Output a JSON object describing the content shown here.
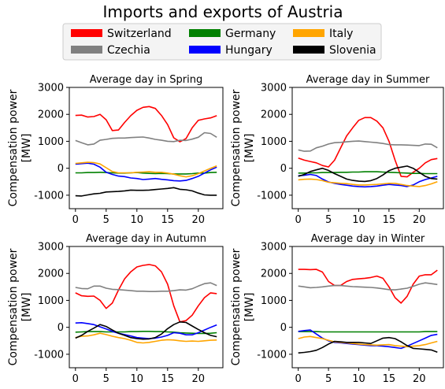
{
  "figure_title": "Imports and exports of Austria",
  "legend": [
    {
      "name": "Switzerland",
      "color": "#ff0000"
    },
    {
      "name": "Germany",
      "color": "#008000"
    },
    {
      "name": "Italy",
      "color": "#ffa500"
    },
    {
      "name": "Czechia",
      "color": "#808080"
    },
    {
      "name": "Hungary",
      "color": "#0000ff"
    },
    {
      "name": "Slovenia",
      "color": "#000000"
    }
  ],
  "chart_data": [
    {
      "type": "line",
      "title": "Average day in Spring",
      "ylabel": "Compensation power\n[MW]",
      "xlim": [
        -1,
        24
      ],
      "ylim": [
        -1500,
        3000
      ],
      "xticks": [
        0,
        5,
        10,
        15,
        20
      ],
      "yticks": [
        -1000,
        0,
        1000,
        2000,
        3000
      ],
      "x": [
        0,
        1,
        2,
        3,
        4,
        5,
        6,
        7,
        8,
        9,
        10,
        11,
        12,
        13,
        14,
        15,
        16,
        17,
        18,
        19,
        20,
        21,
        22,
        23
      ],
      "series": [
        {
          "name": "Switzerland",
          "color": "#ff0000",
          "values": [
            1960,
            1970,
            1900,
            1920,
            2000,
            1800,
            1400,
            1420,
            1700,
            1950,
            2150,
            2260,
            2290,
            2220,
            1960,
            1620,
            1130,
            980,
            1100,
            1500,
            1780,
            1830,
            1870,
            1950
          ]
        },
        {
          "name": "Czechia",
          "color": "#808080",
          "values": [
            1030,
            950,
            870,
            900,
            1040,
            1070,
            1110,
            1120,
            1120,
            1140,
            1150,
            1160,
            1120,
            1070,
            1040,
            1000,
            990,
            1040,
            1030,
            1080,
            1150,
            1320,
            1290,
            1150
          ]
        },
        {
          "name": "Germany",
          "color": "#008000",
          "values": [
            -170,
            -170,
            -160,
            -160,
            -150,
            -160,
            -170,
            -180,
            -180,
            -170,
            -160,
            -180,
            -190,
            -200,
            -190,
            -200,
            -210,
            -210,
            -210,
            -200,
            -180,
            -180,
            -160,
            -150
          ]
        },
        {
          "name": "Hungary",
          "color": "#0000ff",
          "values": [
            150,
            170,
            190,
            150,
            40,
            -150,
            -230,
            -290,
            -310,
            -360,
            -380,
            -420,
            -400,
            -380,
            -410,
            -430,
            -460,
            -470,
            -450,
            -380,
            -300,
            -180,
            -60,
            40
          ]
        },
        {
          "name": "Italy",
          "color": "#ffa500",
          "values": [
            180,
            200,
            220,
            210,
            160,
            20,
            -120,
            -170,
            -170,
            -170,
            -150,
            -140,
            -130,
            -150,
            -150,
            -180,
            -220,
            -280,
            -320,
            -280,
            -200,
            -100,
            0,
            90
          ]
        },
        {
          "name": "Slovenia",
          "color": "#000000",
          "values": [
            -1020,
            -1030,
            -990,
            -950,
            -930,
            -880,
            -870,
            -860,
            -840,
            -810,
            -820,
            -820,
            -810,
            -790,
            -770,
            -750,
            -720,
            -780,
            -800,
            -840,
            -920,
            -990,
            -1000,
            -1000
          ]
        }
      ]
    },
    {
      "type": "line",
      "title": "Average day in Summer",
      "ylabel": "Compensation power\n[MW]",
      "xlim": [
        -1,
        24
      ],
      "ylim": [
        -1500,
        3000
      ],
      "xticks": [
        0,
        5,
        10,
        15,
        20
      ],
      "yticks": [
        -1000,
        0,
        1000,
        2000,
        3000
      ],
      "x": [
        0,
        1,
        2,
        3,
        4,
        5,
        6,
        7,
        8,
        9,
        10,
        11,
        12,
        13,
        14,
        15,
        16,
        17,
        18,
        19,
        20,
        21,
        22,
        23
      ],
      "series": [
        {
          "name": "Switzerland",
          "color": "#ff0000",
          "values": [
            380,
            300,
            250,
            200,
            100,
            50,
            300,
            750,
            1200,
            1500,
            1780,
            1880,
            1880,
            1750,
            1500,
            1000,
            300,
            -300,
            -320,
            -150,
            0,
            200,
            320,
            360
          ]
        },
        {
          "name": "Czechia",
          "color": "#808080",
          "values": [
            680,
            630,
            640,
            760,
            820,
            900,
            950,
            960,
            980,
            1000,
            1010,
            990,
            970,
            950,
            920,
            880,
            870,
            870,
            860,
            850,
            840,
            900,
            890,
            760
          ]
        },
        {
          "name": "Germany",
          "color": "#008000",
          "values": [
            -180,
            -180,
            -170,
            -170,
            -160,
            -160,
            -160,
            -150,
            -150,
            -140,
            -140,
            -130,
            -130,
            -130,
            -140,
            -150,
            -160,
            -170,
            -180,
            -190,
            -190,
            -200,
            -200,
            -200
          ]
        },
        {
          "name": "Hungary",
          "color": "#0000ff",
          "values": [
            -280,
            -260,
            -230,
            -270,
            -400,
            -510,
            -560,
            -600,
            -630,
            -660,
            -680,
            -690,
            -680,
            -660,
            -630,
            -600,
            -620,
            -640,
            -680,
            -620,
            -500,
            -420,
            -360,
            -300
          ]
        },
        {
          "name": "Italy",
          "color": "#ffa500",
          "values": [
            -430,
            -410,
            -400,
            -420,
            -460,
            -520,
            -540,
            -560,
            -570,
            -600,
            -620,
            -620,
            -610,
            -600,
            -580,
            -560,
            -560,
            -600,
            -640,
            -660,
            -680,
            -640,
            -580,
            -500
          ]
        },
        {
          "name": "Slovenia",
          "color": "#000000",
          "values": [
            -300,
            -230,
            -120,
            -60,
            0,
            -80,
            -200,
            -300,
            -400,
            -450,
            -480,
            -490,
            -460,
            -380,
            -250,
            -90,
            0,
            40,
            80,
            0,
            -150,
            -300,
            -380,
            -400
          ]
        }
      ]
    },
    {
      "type": "line",
      "title": "Average day in Autumn",
      "ylabel": "Compensation power\n[MW]",
      "xlim": [
        -1,
        24
      ],
      "ylim": [
        -1500,
        3000
      ],
      "xticks": [
        0,
        5,
        10,
        15,
        20
      ],
      "yticks": [
        -1000,
        0,
        1000,
        2000,
        3000
      ],
      "x": [
        0,
        1,
        2,
        3,
        4,
        5,
        6,
        7,
        8,
        9,
        10,
        11,
        12,
        13,
        14,
        15,
        16,
        17,
        18,
        19,
        20,
        21,
        22,
        23
      ],
      "series": [
        {
          "name": "Switzerland",
          "color": "#ff0000",
          "values": [
            1280,
            1170,
            1150,
            1160,
            1000,
            700,
            900,
            1380,
            1800,
            2060,
            2240,
            2300,
            2330,
            2280,
            2060,
            1600,
            800,
            200,
            250,
            450,
            800,
            1100,
            1280,
            1250
          ]
        },
        {
          "name": "Czechia",
          "color": "#808080",
          "values": [
            1480,
            1440,
            1430,
            1530,
            1530,
            1450,
            1410,
            1400,
            1380,
            1360,
            1340,
            1340,
            1330,
            1330,
            1340,
            1340,
            1360,
            1390,
            1380,
            1430,
            1530,
            1620,
            1650,
            1550
          ]
        },
        {
          "name": "Germany",
          "color": "#008000",
          "values": [
            -180,
            -170,
            -160,
            -160,
            -160,
            -170,
            -170,
            -170,
            -170,
            -160,
            -160,
            -150,
            -150,
            -160,
            -160,
            -170,
            -180,
            -200,
            -210,
            -220,
            -230,
            -230,
            -220,
            -200
          ]
        },
        {
          "name": "Hungary",
          "color": "#0000ff",
          "values": [
            160,
            170,
            140,
            100,
            20,
            -60,
            -150,
            -220,
            -270,
            -320,
            -380,
            -400,
            -420,
            -400,
            -360,
            -300,
            -200,
            -220,
            -280,
            -280,
            -200,
            -100,
            0,
            90
          ]
        },
        {
          "name": "Italy",
          "color": "#ffa500",
          "values": [
            -380,
            -330,
            -320,
            -280,
            -220,
            -270,
            -330,
            -380,
            -420,
            -480,
            -560,
            -580,
            -560,
            -520,
            -480,
            -460,
            -470,
            -500,
            -520,
            -510,
            -520,
            -500,
            -480,
            -470
          ]
        },
        {
          "name": "Slovenia",
          "color": "#000000",
          "values": [
            -400,
            -300,
            -150,
            -30,
            100,
            30,
            -100,
            -220,
            -300,
            -380,
            -420,
            -440,
            -430,
            -380,
            -250,
            -50,
            100,
            200,
            180,
            50,
            -80,
            -200,
            -300,
            -350
          ]
        }
      ]
    },
    {
      "type": "line",
      "title": "Average day in Winter",
      "ylabel": "Compensation power\n[MW]",
      "xlim": [
        -1,
        24
      ],
      "ylim": [
        -1500,
        3000
      ],
      "xticks": [
        0,
        5,
        10,
        15,
        20
      ],
      "yticks": [
        -1000,
        0,
        1000,
        2000,
        3000
      ],
      "x": [
        0,
        1,
        2,
        3,
        4,
        5,
        6,
        7,
        8,
        9,
        10,
        11,
        12,
        13,
        14,
        15,
        16,
        17,
        18,
        19,
        20,
        21,
        22,
        23
      ],
      "series": [
        {
          "name": "Switzerland",
          "color": "#ff0000",
          "values": [
            2150,
            2150,
            2140,
            2150,
            2050,
            1700,
            1550,
            1550,
            1700,
            1780,
            1800,
            1820,
            1850,
            1900,
            1820,
            1500,
            1100,
            900,
            1150,
            1600,
            1900,
            1950,
            1950,
            2120
          ]
        },
        {
          "name": "Czechia",
          "color": "#808080",
          "values": [
            1530,
            1500,
            1470,
            1480,
            1500,
            1530,
            1550,
            1550,
            1530,
            1510,
            1500,
            1490,
            1480,
            1460,
            1430,
            1400,
            1390,
            1420,
            1450,
            1520,
            1600,
            1650,
            1620,
            1590
          ]
        },
        {
          "name": "Germany",
          "color": "#008000",
          "values": [
            -160,
            -160,
            -160,
            -160,
            -170,
            -170,
            -170,
            -170,
            -170,
            -170,
            -170,
            -170,
            -170,
            -170,
            -170,
            -170,
            -170,
            -170,
            -170,
            -170,
            -170,
            -160,
            -160,
            -160
          ]
        },
        {
          "name": "Hungary",
          "color": "#0000ff",
          "values": [
            -150,
            -120,
            -100,
            -250,
            -400,
            -500,
            -560,
            -580,
            -600,
            -620,
            -640,
            -660,
            -680,
            -680,
            -700,
            -720,
            -750,
            -780,
            -700,
            -600,
            -500,
            -400,
            -300,
            -260
          ]
        },
        {
          "name": "Italy",
          "color": "#ffa500",
          "values": [
            -420,
            -360,
            -340,
            -380,
            -420,
            -480,
            -540,
            -560,
            -580,
            -600,
            -620,
            -640,
            -650,
            -660,
            -650,
            -640,
            -680,
            -700,
            -720,
            -700,
            -680,
            -640,
            -580,
            -520
          ]
        },
        {
          "name": "Slovenia",
          "color": "#000000",
          "values": [
            -950,
            -930,
            -900,
            -850,
            -750,
            -620,
            -520,
            -540,
            -560,
            -560,
            -560,
            -580,
            -600,
            -500,
            -400,
            -380,
            -420,
            -540,
            -680,
            -780,
            -800,
            -820,
            -840,
            -920
          ]
        }
      ]
    }
  ]
}
